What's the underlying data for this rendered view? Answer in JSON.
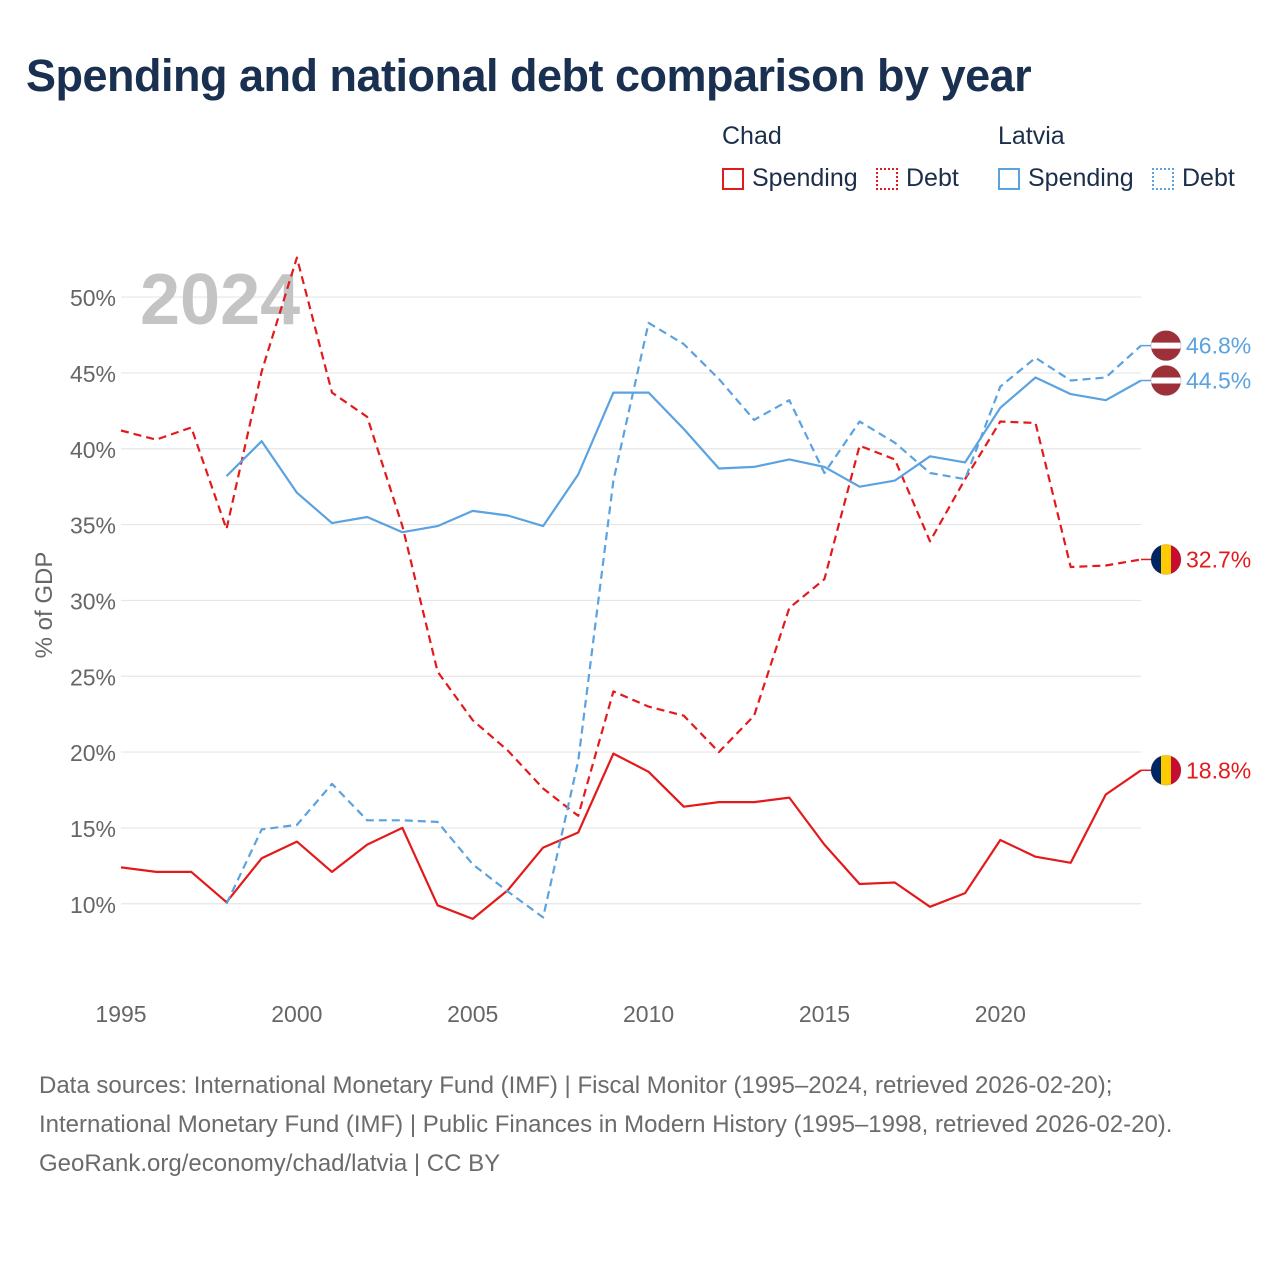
{
  "title": "Spending and national debt comparison by year",
  "legend": {
    "groups": [
      {
        "country": "Chad",
        "items": [
          {
            "label": "Spending",
            "style": "solid"
          },
          {
            "label": "Debt",
            "style": "dotted"
          }
        ]
      },
      {
        "country": "Latvia",
        "items": [
          {
            "label": "Spending",
            "style": "solid"
          },
          {
            "label": "Debt",
            "style": "dotted"
          }
        ]
      }
    ]
  },
  "footer": {
    "sources": "Data sources: International Monetary Fund (IMF) | Fiscal Monitor (1995–2024, retrieved 2026-02-20); International Monetary Fund (IMF) | Public Finances in Modern History (1995–1998, retrieved 2026-02-20).",
    "credit": "GeoRank.org/economy/chad/latvia | CC BY"
  },
  "chart_data": {
    "type": "line",
    "title": "Spending and national debt comparison by year",
    "year_label": "2024",
    "xlabel": "",
    "ylabel": "% of GDP",
    "xlim": [
      1995,
      2024
    ],
    "ylim": [
      5.5,
      53.5
    ],
    "x_ticks": [
      1995,
      2000,
      2005,
      2010,
      2015,
      2020
    ],
    "y_ticks": [
      10,
      15,
      20,
      25,
      30,
      35,
      40,
      45,
      50
    ],
    "y_tick_labels": [
      "10%",
      "15%",
      "20%",
      "25%",
      "30%",
      "35%",
      "40%",
      "45%",
      "50%"
    ],
    "grid": true,
    "colors": {
      "chad": "#e31a1c",
      "latvia": "#5aa2e0"
    },
    "series": [
      {
        "name": "Chad Spending",
        "country": "Chad",
        "measure": "Spending",
        "color": "#e31a1c",
        "dash": false,
        "x": [
          1995,
          1996,
          1997,
          1998,
          1999,
          2000,
          2001,
          2002,
          2003,
          2004,
          2005,
          2006,
          2007,
          2008,
          2009,
          2010,
          2011,
          2012,
          2013,
          2014,
          2015,
          2016,
          2017,
          2018,
          2019,
          2020,
          2021,
          2022,
          2023,
          2024
        ],
        "values": [
          12.4,
          12.1,
          12.1,
          10.1,
          13.0,
          14.1,
          12.1,
          13.9,
          15.0,
          9.9,
          9.0,
          10.9,
          13.7,
          14.7,
          19.9,
          18.7,
          16.4,
          16.7,
          16.7,
          17.0,
          13.9,
          11.3,
          11.4,
          9.8,
          10.7,
          14.2,
          13.1,
          12.7,
          17.2,
          18.8
        ],
        "end_label": "18.8%",
        "end_flag": "chad"
      },
      {
        "name": "Chad Debt",
        "country": "Chad",
        "measure": "Debt",
        "color": "#e31a1c",
        "dash": true,
        "x": [
          1995,
          1996,
          1997,
          1998,
          1999,
          2000,
          2001,
          2002,
          2003,
          2004,
          2005,
          2006,
          2007,
          2008,
          2009,
          2010,
          2011,
          2012,
          2013,
          2014,
          2015,
          2016,
          2017,
          2018,
          2019,
          2020,
          2021,
          2022,
          2023,
          2024
        ],
        "values": [
          41.2,
          40.6,
          41.4,
          34.7,
          45.1,
          52.6,
          43.7,
          42.1,
          34.9,
          25.3,
          22.1,
          20.1,
          17.6,
          15.8,
          24.0,
          23.0,
          22.4,
          20.0,
          22.4,
          29.5,
          31.4,
          40.2,
          39.3,
          33.9,
          38.0,
          41.8,
          41.7,
          32.2,
          32.3,
          32.7
        ],
        "end_label": "32.7%",
        "end_flag": "chad"
      },
      {
        "name": "Latvia Spending",
        "country": "Latvia",
        "measure": "Spending",
        "color": "#5aa2e0",
        "dash": false,
        "x": [
          1998,
          1999,
          2000,
          2001,
          2002,
          2003,
          2004,
          2005,
          2006,
          2007,
          2008,
          2009,
          2010,
          2011,
          2012,
          2013,
          2014,
          2015,
          2016,
          2017,
          2018,
          2019,
          2020,
          2021,
          2022,
          2023,
          2024
        ],
        "values": [
          38.2,
          40.5,
          37.1,
          35.1,
          35.5,
          34.5,
          34.9,
          35.9,
          35.6,
          34.9,
          38.3,
          43.7,
          43.7,
          41.3,
          38.7,
          38.8,
          39.3,
          38.8,
          37.5,
          37.9,
          39.5,
          39.1,
          42.7,
          44.7,
          43.6,
          43.2,
          44.5
        ],
        "end_label": "44.5%",
        "end_flag": "latvia"
      },
      {
        "name": "Latvia Debt",
        "country": "Latvia",
        "measure": "Debt",
        "color": "#5aa2e0",
        "dash": true,
        "x": [
          1998,
          1999,
          2000,
          2001,
          2002,
          2003,
          2004,
          2005,
          2006,
          2007,
          2008,
          2009,
          2010,
          2011,
          2012,
          2013,
          2014,
          2015,
          2016,
          2017,
          2018,
          2019,
          2020,
          2021,
          2022,
          2023,
          2024
        ],
        "values": [
          10.0,
          14.9,
          15.2,
          17.9,
          15.5,
          15.5,
          15.4,
          12.6,
          10.8,
          9.1,
          19.4,
          37.9,
          48.3,
          46.9,
          44.6,
          41.9,
          43.2,
          38.4,
          41.8,
          40.4,
          38.4,
          38.0,
          44.1,
          46.0,
          44.5,
          44.7,
          46.8
        ],
        "end_label": "46.8%",
        "end_flag": "latvia"
      }
    ]
  }
}
